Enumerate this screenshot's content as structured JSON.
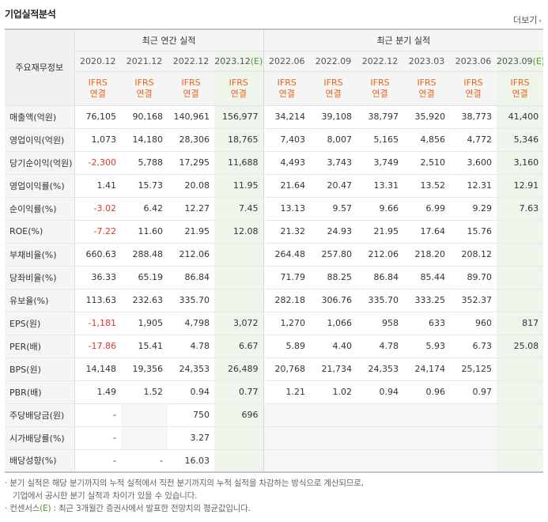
{
  "header": {
    "title": "기업실적분석",
    "more_label": "더보기",
    "more_arrow": "›"
  },
  "table": {
    "label_header": "주요재무정보",
    "annual_group": "최근 연간 실적",
    "quarter_group": "최근 분기 실적",
    "periods": [
      "2020.12",
      "2021.12",
      "2022.12",
      "2023.12",
      "2022.06",
      "2022.09",
      "2022.12",
      "2023.03",
      "2023.06",
      "2023.09"
    ],
    "estimate_mark": "(E)",
    "estimate_columns": [
      3,
      9
    ],
    "ifrs_top": "IFRS",
    "ifrs_bottom": "연결",
    "rows": [
      {
        "label": "매출액(억원)",
        "values": [
          "76,105",
          "90,168",
          "140,961",
          "156,977",
          "34,214",
          "39,108",
          "38,797",
          "35,920",
          "38,773",
          "41,400"
        ]
      },
      {
        "label": "영업이익(억원)",
        "values": [
          "1,073",
          "14,180",
          "28,306",
          "18,765",
          "7,403",
          "8,007",
          "5,165",
          "4,856",
          "4,772",
          "5,346"
        ]
      },
      {
        "label": "당기순이익(억원)",
        "values": [
          "-2,300",
          "5,788",
          "17,295",
          "11,688",
          "4,493",
          "3,743",
          "3,749",
          "2,510",
          "3,600",
          "3,160"
        ]
      },
      {
        "label": "영업이익률(%)",
        "values": [
          "1.41",
          "15.73",
          "20.08",
          "11.95",
          "21.64",
          "20.47",
          "13.31",
          "13.52",
          "12.31",
          "12.91"
        ]
      },
      {
        "label": "순이익률(%)",
        "values": [
          "-3.02",
          "6.42",
          "12.27",
          "7.45",
          "13.13",
          "9.57",
          "9.66",
          "6.99",
          "9.29",
          "7.63"
        ]
      },
      {
        "label": "ROE(%)",
        "values": [
          "-7.22",
          "11.60",
          "21.95",
          "12.08",
          "21.32",
          "24.93",
          "21.95",
          "17.64",
          "15.76",
          ""
        ]
      },
      {
        "label": "부채비율(%)",
        "values": [
          "660.63",
          "288.48",
          "212.06",
          "",
          "264.48",
          "257.80",
          "212.06",
          "218.20",
          "208.12",
          ""
        ]
      },
      {
        "label": "당좌비율(%)",
        "values": [
          "36.33",
          "65.19",
          "86.84",
          "",
          "71.79",
          "88.25",
          "86.84",
          "85.44",
          "89.70",
          ""
        ]
      },
      {
        "label": "유보율(%)",
        "values": [
          "113.63",
          "232.63",
          "335.70",
          "",
          "282.18",
          "306.76",
          "335.70",
          "333.25",
          "352.37",
          ""
        ]
      },
      {
        "label": "EPS(원)",
        "values": [
          "-1,181",
          "1,905",
          "4,798",
          "3,072",
          "1,270",
          "1,066",
          "958",
          "633",
          "960",
          "817"
        ]
      },
      {
        "label": "PER(배)",
        "values": [
          "-17.86",
          "15.41",
          "4.78",
          "6.67",
          "5.89",
          "4.40",
          "4.78",
          "5.93",
          "6.73",
          "25.08"
        ]
      },
      {
        "label": "BPS(원)",
        "values": [
          "14,148",
          "19,356",
          "24,353",
          "26,489",
          "20,768",
          "21,734",
          "24,353",
          "24,174",
          "25,125",
          ""
        ]
      },
      {
        "label": "PBR(배)",
        "values": [
          "1.49",
          "1.52",
          "0.94",
          "0.77",
          "1.21",
          "1.02",
          "0.94",
          "0.96",
          "0.97",
          ""
        ]
      },
      {
        "label": "주당배당금(원)",
        "values": [
          "-",
          "",
          "750",
          "696",
          "",
          "",
          "",
          "",
          "",
          ""
        ]
      },
      {
        "label": "시가배당률(%)",
        "values": [
          "-",
          "",
          "3.27",
          "",
          "",
          "",
          "",
          "",
          "",
          ""
        ]
      },
      {
        "label": "배당성향(%)",
        "values": [
          "-",
          "-",
          "16.03",
          "",
          "",
          "",
          "",
          "",
          "",
          ""
        ]
      }
    ]
  },
  "notes": {
    "line1": "· 분기 실적은 해당 분기까지의 누적 실적에서 직전 분기까지의 누적 실적을 차감하는 방식으로 계산되므로,",
    "line2": "기업에서 공시한 분기 실적과 차이가 있을 수 있습니다.",
    "line3_prefix": "· 컨센서스",
    "line3_mark": "(E)",
    "line3_suffix": " : 최근 3개월간 증권사에서 발표한 전망치의 평균값입니다."
  },
  "colors": {
    "ifrs": "#e8651e",
    "estimate_mark": "#4a9b34",
    "estimate_bg": "#eef6ec",
    "negative": "#d93a2b"
  }
}
